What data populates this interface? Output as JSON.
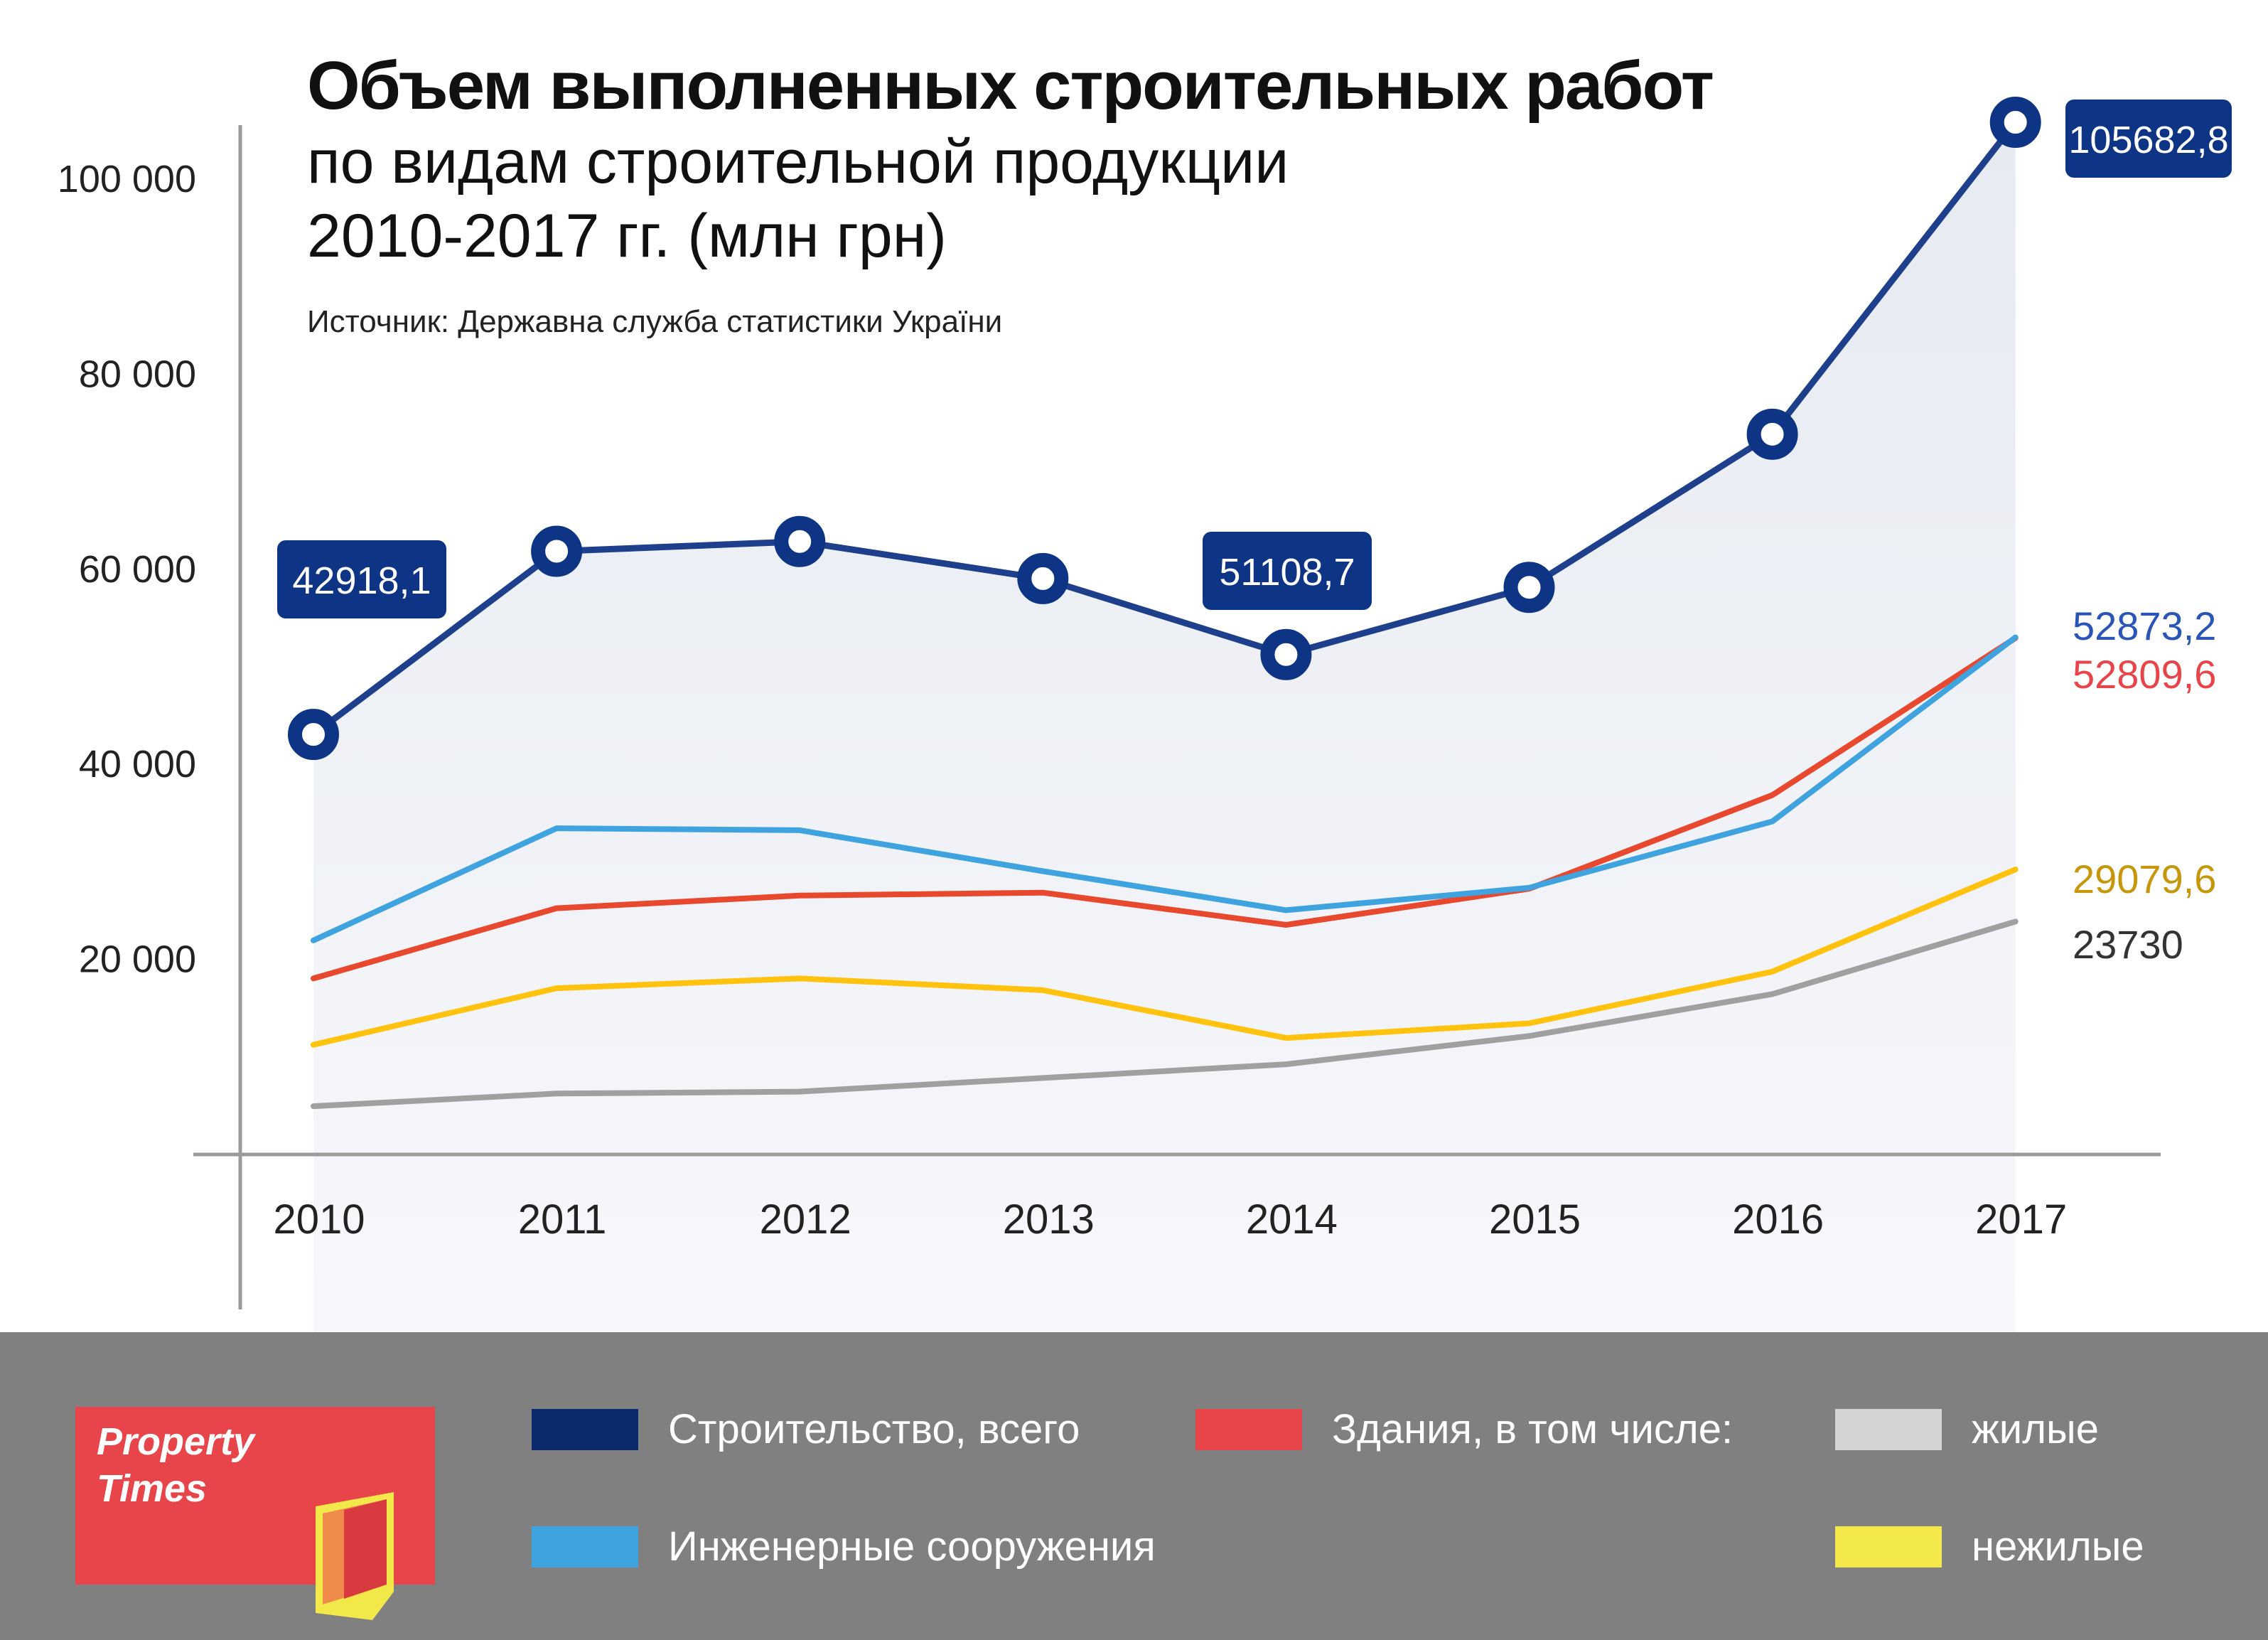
{
  "header": {
    "title_line1": "Объем выполненных строительных работ",
    "title_line2": "по видам строительной продукции",
    "title_line3": "2010-2017 гг.  (млн грн)",
    "source": "Источник: Державна служба статистики України"
  },
  "logo": {
    "line1": "Property",
    "line2": "Times"
  },
  "legend": [
    {
      "label": "Строительство, всего",
      "color": "#0b2a6b"
    },
    {
      "label": "Инженерные сооружения",
      "color": "#3fa3e0"
    },
    {
      "label": "Здания, в том числе:",
      "color": "#e8454a"
    },
    {
      "label": "жилые",
      "color": "#d4d4d4"
    },
    {
      "label": "нежилые",
      "color": "#f2e84a"
    }
  ],
  "colors": {
    "total": "#1e3f8c",
    "engineering": "#3fa3e0",
    "buildings": "#e8482e",
    "residential": "#a0a0a0",
    "nonresidential": "#ffc20e",
    "area_fill": "#dfe5ee",
    "callout": "#0e3585"
  },
  "chart_data": {
    "type": "line",
    "x": [
      "2010",
      "2011",
      "2012",
      "2013",
      "2014",
      "2015",
      "2016",
      "2017"
    ],
    "ylim": [
      0,
      110000
    ],
    "yticks": [
      {
        "value": 20000,
        "label": "20 000"
      },
      {
        "value": 40000,
        "label": "40 000"
      },
      {
        "value": 60000,
        "label": "60 000"
      },
      {
        "value": 80000,
        "label": "80 000"
      },
      {
        "value": 100000,
        "label": "100 000"
      }
    ],
    "series": [
      {
        "key": "total",
        "name": "Строительство, всего",
        "values": [
          42918.1,
          61700,
          62700,
          58900,
          51108.7,
          58000,
          73700,
          105682.8
        ]
      },
      {
        "key": "engineering",
        "name": "Инженерные сооружения",
        "values": [
          21800,
          33300,
          33100,
          28900,
          24900,
          27200,
          34000,
          52873.2
        ]
      },
      {
        "key": "buildings",
        "name": "Здания, в том числе:",
        "values": [
          17900,
          25100,
          26400,
          26700,
          23400,
          27100,
          36700,
          52809.6
        ]
      },
      {
        "key": "nonresidential",
        "name": "нежилые",
        "values": [
          11100,
          16900,
          17900,
          16700,
          11800,
          13300,
          18600,
          29079.6
        ]
      },
      {
        "key": "residential",
        "name": "жилые",
        "values": [
          4800,
          6100,
          6300,
          7700,
          9100,
          12000,
          16300,
          23730
        ]
      }
    ],
    "callouts": [
      {
        "index": 0,
        "label": "42918,1"
      },
      {
        "index": 4,
        "label": "51108,7"
      },
      {
        "index": 7,
        "label": "105682,8"
      }
    ],
    "end_labels": [
      {
        "series": "engineering",
        "label": "52873,2",
        "color": "#2a54b8"
      },
      {
        "series": "buildings",
        "label": "52809,6",
        "color": "#e8454a"
      },
      {
        "series": "nonresidential",
        "label": "29079,6",
        "color": "#c8960a"
      },
      {
        "series": "residential",
        "label": "23730",
        "color": "#333333"
      }
    ]
  }
}
